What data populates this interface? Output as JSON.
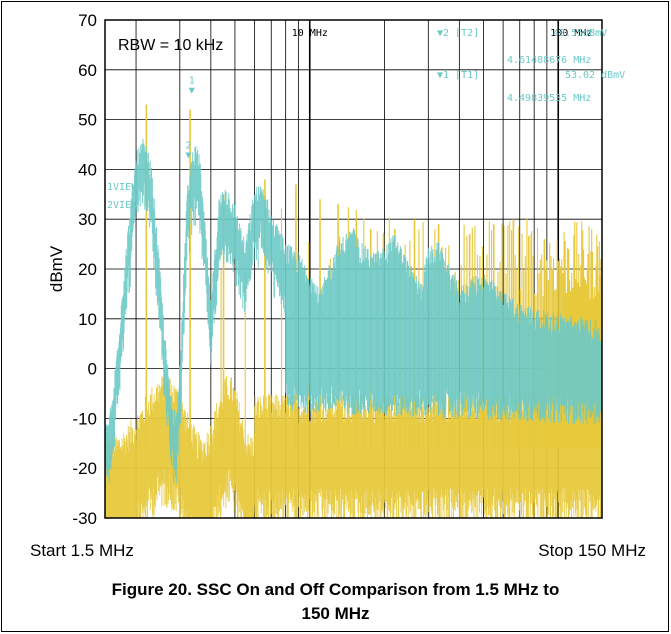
{
  "chart_data": {
    "type": "line",
    "title": "",
    "ylabel": "dBmV",
    "xlabel": "",
    "ylim": [
      -30,
      70
    ],
    "yticks": [
      70,
      60,
      50,
      40,
      30,
      20,
      10,
      0,
      -10,
      -20,
      -30
    ],
    "x_scale": "log",
    "xlim": [
      1.5,
      150
    ],
    "x_unit": "MHz",
    "x_start_label": "Start 1.5 MHz",
    "x_stop_label": "Stop 150 MHz",
    "grid": true,
    "annotation": "RBW = 10 kHz",
    "grid_labels": [
      "10 MHz",
      "100 MHz"
    ],
    "colors": {
      "ssc_on": "#6cc9c6",
      "ssc_off": "#e8c93c"
    },
    "series": [
      {
        "name": "",
        "color": "#e8c93c",
        "description_key": "ssc_off",
        "peaks_mhz": [
          2.2,
          3.3,
          4.5,
          6.6,
          8.8,
          11,
          13,
          15.4,
          17.6,
          19.8,
          22,
          26.4,
          33,
          44,
          55,
          66,
          88,
          110,
          132
        ],
        "peak_dbmv": [
          53,
          52,
          35,
          38,
          37,
          34,
          33,
          30,
          28,
          27,
          28,
          30,
          29,
          27,
          29,
          30,
          26,
          24,
          23
        ],
        "floor_dbmv": -16
      },
      {
        "name": "",
        "color": "#6cc9c6",
        "description_key": "ssc_on",
        "points": [
          [
            1.5,
            -15
          ],
          [
            1.6,
            -10
          ],
          [
            1.75,
            12
          ],
          [
            1.9,
            30
          ],
          [
            2.0,
            40
          ],
          [
            2.15,
            43
          ],
          [
            2.3,
            38
          ],
          [
            2.45,
            22
          ],
          [
            2.6,
            5
          ],
          [
            2.75,
            -8
          ],
          [
            2.9,
            -12
          ],
          [
            3.05,
            5
          ],
          [
            3.2,
            32
          ],
          [
            3.4,
            42
          ],
          [
            3.6,
            40
          ],
          [
            3.8,
            25
          ],
          [
            4.0,
            10
          ],
          [
            4.3,
            31
          ],
          [
            4.6,
            34
          ],
          [
            5.0,
            30
          ],
          [
            5.5,
            22
          ],
          [
            6.0,
            33
          ],
          [
            6.5,
            34
          ],
          [
            7.0,
            28
          ],
          [
            8.0,
            22
          ],
          [
            9.0,
            20
          ],
          [
            10,
            17
          ],
          [
            11,
            12
          ],
          [
            12,
            18
          ],
          [
            13,
            22
          ],
          [
            14,
            24
          ],
          [
            15,
            25
          ],
          [
            16,
            22
          ],
          [
            18,
            20
          ],
          [
            20,
            21
          ],
          [
            22,
            24
          ],
          [
            25,
            18
          ],
          [
            28,
            14
          ],
          [
            30,
            21
          ],
          [
            33,
            22
          ],
          [
            36,
            18
          ],
          [
            40,
            13
          ],
          [
            45,
            15
          ],
          [
            50,
            16
          ],
          [
            55,
            14
          ],
          [
            60,
            12
          ],
          [
            70,
            10
          ],
          [
            80,
            9
          ],
          [
            90,
            8
          ],
          [
            100,
            8
          ],
          [
            120,
            7
          ],
          [
            150,
            6
          ]
        ],
        "lower_band_dbmv": -6
      }
    ],
    "markers": [
      {
        "label": "1",
        "x": 3.35,
        "y": 56
      },
      {
        "label": "2",
        "x": 3.25,
        "y": 43
      }
    ],
    "left_labels": [
      "1VIEW",
      "2VIEW"
    ],
    "marker_readouts": [
      "▼2 [T2]",
      "43.55dBmV",
      "4.61488676 MHz",
      "▼1 [T1]",
      "53.02 dBmV",
      "4.49839535 MHz"
    ]
  },
  "caption": {
    "line1": "Figure 20. SSC On and Off Comparison from 1.5 MHz to",
    "line2": "150 MHz"
  }
}
